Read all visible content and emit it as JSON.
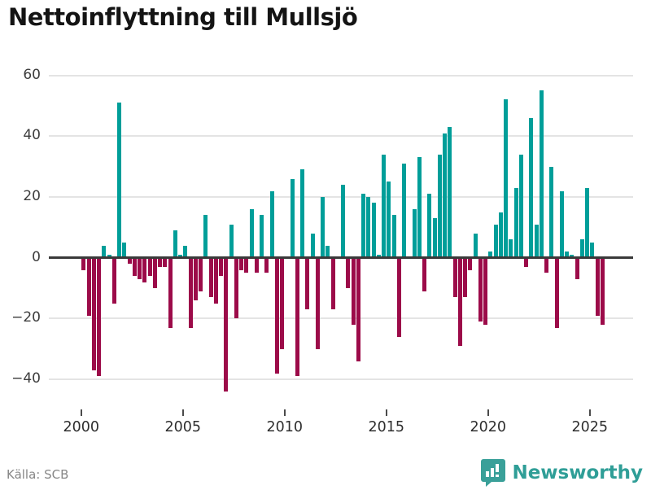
{
  "title": "Nettoinflyttning till Mullsjö",
  "source": "Källa: SCB",
  "brand": {
    "name": "Newsworthy",
    "logo_icon": "bar-chart-bubble-icon"
  },
  "colors": {
    "positive_bar": "#009E99",
    "negative_bar": "#9C0B49",
    "zero_line": "#3a3a3a",
    "gridline": "#e4e4e4",
    "brand_teal": "#3aa099"
  },
  "chart_data": {
    "type": "bar",
    "title": "Nettoinflyttning till Mullsjö",
    "xlabel": "",
    "ylabel": "",
    "period": "quarterly",
    "start_period": "2000Q1",
    "end_period": "2025Q3",
    "y_ticks": [
      60,
      40,
      20,
      0,
      -20,
      -40
    ],
    "ylim": [
      -47,
      63
    ],
    "x_tick_labels": [
      "2000",
      "2005",
      "2010",
      "2015",
      "2020",
      "2025"
    ],
    "grid": true,
    "legend": false,
    "series_name": "Nettoinflyttning",
    "values_by_year": {
      "2000": [
        -4,
        -19,
        -37,
        -39
      ],
      "2001": [
        4,
        1,
        -15,
        51
      ],
      "2002": [
        5,
        -2,
        -6,
        -7
      ],
      "2003": [
        -8,
        -6,
        -10,
        -3
      ],
      "2004": [
        -3,
        -23,
        9,
        1
      ],
      "2005": [
        4,
        -23,
        -14,
        -11
      ],
      "2006": [
        14,
        -13,
        -15,
        -6
      ],
      "2007": [
        -44,
        11,
        -20,
        -4
      ],
      "2008": [
        -5,
        16,
        -5,
        14
      ],
      "2009": [
        -5,
        22,
        -38,
        -30
      ],
      "2010": [
        0,
        26,
        -39,
        29
      ],
      "2011": [
        -17,
        8,
        -30,
        20
      ],
      "2012": [
        4,
        -17,
        0,
        24
      ],
      "2013": [
        -10,
        -22,
        -34,
        21
      ],
      "2014": [
        20,
        18,
        1,
        34
      ],
      "2015": [
        25,
        14,
        -26,
        31
      ],
      "2016": [
        0,
        16,
        33,
        -11
      ],
      "2017": [
        21,
        13,
        34,
        41
      ],
      "2018": [
        43,
        -13,
        -29,
        -13
      ],
      "2019": [
        -4,
        8,
        -21,
        -22
      ],
      "2020": [
        2,
        11,
        15,
        52
      ],
      "2021": [
        6,
        23,
        34,
        -3
      ],
      "2022": [
        46,
        11,
        55,
        -5
      ],
      "2023": [
        30,
        -23,
        22,
        2
      ],
      "2024": [
        1,
        -7,
        6,
        23
      ],
      "2025": [
        5,
        -19,
        -22
      ]
    }
  }
}
